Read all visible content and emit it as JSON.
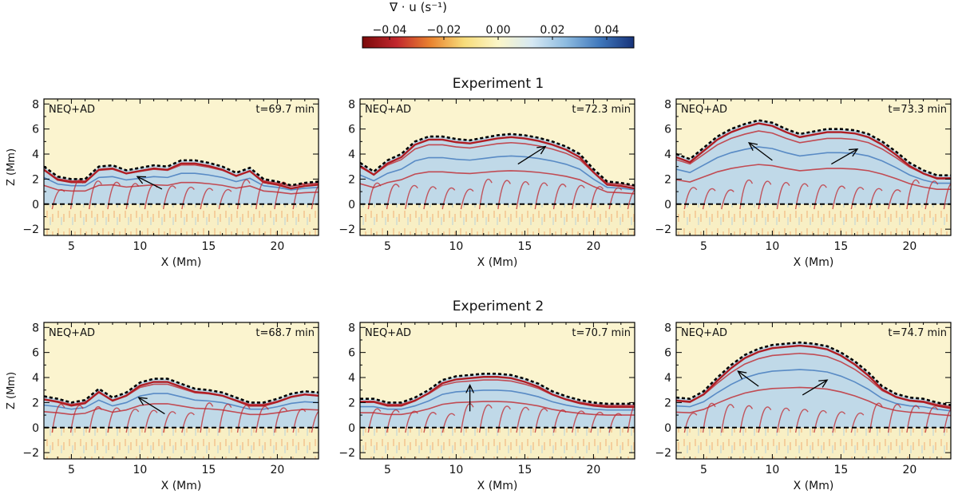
{
  "colorbar": {
    "label": "∇ · u (s⁻¹)",
    "tick_labels": [
      "−0.04",
      "−0.02",
      "0.00",
      "0.02",
      "0.04"
    ],
    "tick_values": [
      -0.04,
      -0.02,
      0.0,
      0.02,
      0.04
    ],
    "range": [
      -0.05,
      0.05
    ],
    "colors": [
      "#7a0a0a",
      "#c1272d",
      "#e9832f",
      "#f7dc7a",
      "#fbf6c8",
      "#d6e8f3",
      "#8dbbe0",
      "#3f77bb",
      "#17337a"
    ]
  },
  "rows": [
    {
      "title": "Experiment 1"
    },
    {
      "title": "Experiment 2"
    }
  ],
  "chart_data": {
    "type": "heatmap",
    "xlabel": "X (Mm)",
    "ylabel": "Z (Mm)",
    "xlim": [
      3,
      23
    ],
    "ylim": [
      -2.5,
      8.4
    ],
    "xticks": [
      5,
      10,
      15,
      20
    ],
    "yticks": [
      -2,
      0,
      2,
      4,
      6,
      8
    ],
    "panels": [
      {
        "label": "NEQ+AD",
        "time": "t=69.7 min",
        "boundary": [
          [
            3,
            3.0
          ],
          [
            4,
            2.2
          ],
          [
            5,
            2.0
          ],
          [
            6,
            2.0
          ],
          [
            7,
            3.0
          ],
          [
            8,
            3.1
          ],
          [
            9,
            2.7
          ],
          [
            10,
            2.9
          ],
          [
            11,
            3.1
          ],
          [
            12,
            3.0
          ],
          [
            13,
            3.5
          ],
          [
            14,
            3.5
          ],
          [
            15,
            3.3
          ],
          [
            16,
            3.0
          ],
          [
            17,
            2.5
          ],
          [
            18,
            2.9
          ],
          [
            19,
            2.0
          ],
          [
            20,
            1.8
          ],
          [
            21,
            1.5
          ],
          [
            22,
            1.7
          ],
          [
            23,
            1.8
          ]
        ],
        "arrows": [
          {
            "from": [
              11.6,
              1.2
            ],
            "to": [
              9.8,
              2.2
            ]
          }
        ]
      },
      {
        "label": "NEQ+AD",
        "time": "t=72.3 min",
        "boundary": [
          [
            3,
            3.3
          ],
          [
            4,
            2.6
          ],
          [
            5,
            3.5
          ],
          [
            6,
            4.0
          ],
          [
            7,
            5.0
          ],
          [
            8,
            5.4
          ],
          [
            9,
            5.4
          ],
          [
            10,
            5.2
          ],
          [
            11,
            5.1
          ],
          [
            12,
            5.3
          ],
          [
            13,
            5.5
          ],
          [
            14,
            5.6
          ],
          [
            15,
            5.5
          ],
          [
            16,
            5.3
          ],
          [
            17,
            5.0
          ],
          [
            18,
            4.6
          ],
          [
            19,
            4.0
          ],
          [
            20,
            2.8
          ],
          [
            21,
            1.8
          ],
          [
            22,
            1.7
          ],
          [
            23,
            1.5
          ]
        ],
        "arrows": [
          {
            "from": [
              14.5,
              3.2
            ],
            "to": [
              16.5,
              4.6
            ]
          }
        ]
      },
      {
        "label": "NEQ+AD",
        "time": "t=73.3 min",
        "boundary": [
          [
            3,
            4.0
          ],
          [
            4,
            3.6
          ],
          [
            5,
            4.5
          ],
          [
            6,
            5.4
          ],
          [
            7,
            6.0
          ],
          [
            8,
            6.4
          ],
          [
            9,
            6.7
          ],
          [
            10,
            6.5
          ],
          [
            11,
            6.0
          ],
          [
            12,
            5.6
          ],
          [
            13,
            5.8
          ],
          [
            14,
            6.0
          ],
          [
            15,
            6.0
          ],
          [
            16,
            5.9
          ],
          [
            17,
            5.6
          ],
          [
            18,
            5.0
          ],
          [
            19,
            4.2
          ],
          [
            20,
            3.3
          ],
          [
            21,
            2.7
          ],
          [
            22,
            2.3
          ],
          [
            23,
            2.3
          ]
        ],
        "arrows": [
          {
            "from": [
              10.0,
              3.5
            ],
            "to": [
              8.3,
              4.9
            ]
          },
          {
            "from": [
              14.3,
              3.2
            ],
            "to": [
              16.2,
              4.4
            ]
          }
        ]
      },
      {
        "label": "NEQ+AD",
        "time": "t=68.7 min",
        "boundary": [
          [
            3,
            2.5
          ],
          [
            4,
            2.3
          ],
          [
            5,
            2.0
          ],
          [
            6,
            2.2
          ],
          [
            7,
            3.1
          ],
          [
            8,
            2.4
          ],
          [
            9,
            2.8
          ],
          [
            10,
            3.6
          ],
          [
            11,
            3.9
          ],
          [
            12,
            3.9
          ],
          [
            13,
            3.5
          ],
          [
            14,
            3.1
          ],
          [
            15,
            3.0
          ],
          [
            16,
            2.8
          ],
          [
            17,
            2.4
          ],
          [
            18,
            2.0
          ],
          [
            19,
            2.0
          ],
          [
            20,
            2.3
          ],
          [
            21,
            2.7
          ],
          [
            22,
            2.9
          ],
          [
            23,
            2.8
          ]
        ],
        "arrows": [
          {
            "from": [
              11.8,
              1.1
            ],
            "to": [
              9.9,
              2.4
            ]
          }
        ]
      },
      {
        "label": "NEQ+AD",
        "time": "t=70.7 min",
        "boundary": [
          [
            3,
            2.3
          ],
          [
            4,
            2.3
          ],
          [
            5,
            2.0
          ],
          [
            6,
            2.0
          ],
          [
            7,
            2.4
          ],
          [
            8,
            3.0
          ],
          [
            9,
            3.8
          ],
          [
            10,
            4.1
          ],
          [
            11,
            4.2
          ],
          [
            12,
            4.3
          ],
          [
            13,
            4.3
          ],
          [
            14,
            4.2
          ],
          [
            15,
            3.9
          ],
          [
            16,
            3.5
          ],
          [
            17,
            2.9
          ],
          [
            18,
            2.5
          ],
          [
            19,
            2.2
          ],
          [
            20,
            2.0
          ],
          [
            21,
            1.9
          ],
          [
            22,
            1.9
          ],
          [
            23,
            1.9
          ]
        ],
        "arrows": [
          {
            "from": [
              11.0,
              1.3
            ],
            "to": [
              11.0,
              3.4
            ]
          }
        ]
      },
      {
        "label": "NEQ+AD",
        "time": "t=74.7 min",
        "boundary": [
          [
            3,
            2.4
          ],
          [
            4,
            2.3
          ],
          [
            5,
            2.9
          ],
          [
            6,
            4.0
          ],
          [
            7,
            5.0
          ],
          [
            8,
            5.8
          ],
          [
            9,
            6.3
          ],
          [
            10,
            6.6
          ],
          [
            11,
            6.7
          ],
          [
            12,
            6.8
          ],
          [
            13,
            6.7
          ],
          [
            14,
            6.5
          ],
          [
            15,
            6.0
          ],
          [
            16,
            5.3
          ],
          [
            17,
            4.4
          ],
          [
            18,
            3.3
          ],
          [
            19,
            2.7
          ],
          [
            20,
            2.4
          ],
          [
            21,
            2.3
          ],
          [
            22,
            2.0
          ],
          [
            23,
            1.8
          ]
        ],
        "arrows": [
          {
            "from": [
              9.0,
              3.3
            ],
            "to": [
              7.5,
              4.5
            ]
          },
          {
            "from": [
              12.2,
              2.6
            ],
            "to": [
              14.0,
              3.8
            ]
          }
        ]
      }
    ]
  }
}
